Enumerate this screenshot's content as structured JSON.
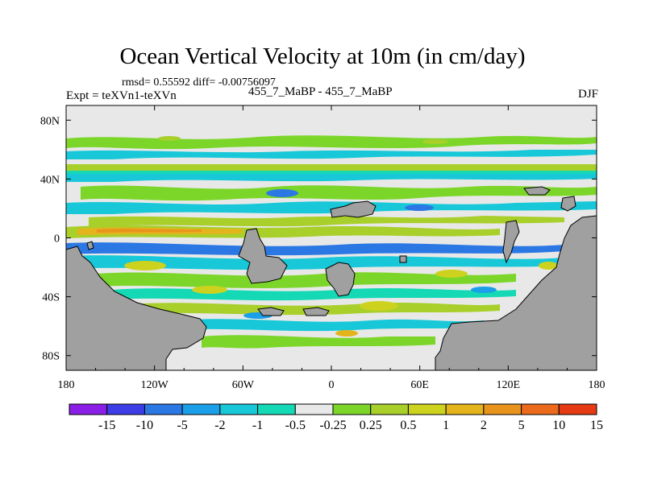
{
  "chart_data": {
    "type": "heatmap",
    "title": "Ocean Vertical Velocity at 10m (in cm/day)",
    "stats_label": "rmsd= 0.55592 diff= -0.00756097",
    "left_label": "Expt = teXVn1-teXVn",
    "center_label": "455_7_MaBP - 455_7_MaBP",
    "right_label": "DJF",
    "x_axis": {
      "range": [
        -180,
        180
      ],
      "ticks": [
        {
          "value": -180,
          "label": "180"
        },
        {
          "value": -120,
          "label": "120W"
        },
        {
          "value": -60,
          "label": "60W"
        },
        {
          "value": 0,
          "label": "0"
        },
        {
          "value": 60,
          "label": "60E"
        },
        {
          "value": 120,
          "label": "120E"
        },
        {
          "value": 180,
          "label": "180"
        }
      ]
    },
    "y_axis": {
      "range": [
        -90,
        90
      ],
      "ticks": [
        {
          "value": 80,
          "label": "80N"
        },
        {
          "value": 40,
          "label": "40N"
        },
        {
          "value": 0,
          "label": "0"
        },
        {
          "value": -40,
          "label": "40S"
        },
        {
          "value": -80,
          "label": "80S"
        }
      ]
    },
    "colorbar": {
      "colors": [
        "#8a1ee6",
        "#3d3de8",
        "#2b78e4",
        "#1a9fe8",
        "#18c8d8",
        "#14d9b4",
        "#e8e8e8",
        "#7cd62a",
        "#a8cf2a",
        "#cdd21e",
        "#e4b41c",
        "#e8941c",
        "#ec6a1c",
        "#e53a12"
      ],
      "labels": [
        "-15",
        "-10",
        "-5",
        "-2",
        "-1",
        "-0.5",
        "-0.25",
        "0.25",
        "0.5",
        "1",
        "2",
        "5",
        "10",
        "15"
      ]
    },
    "land_color": "#a0a0a0",
    "background_value_color": "#e8e8e8"
  }
}
